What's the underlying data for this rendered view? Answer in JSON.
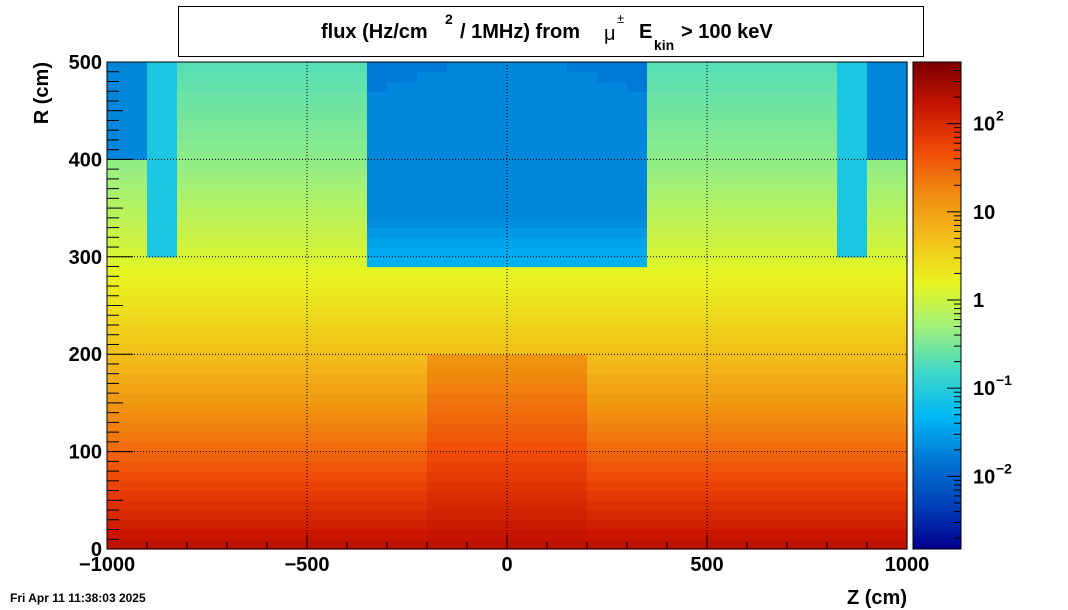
{
  "title": {
    "main": "flux (Hz/cm",
    "sup_2": "2",
    "mid": "/ 1MHz) from",
    "mu": "μ",
    "pm": "±",
    "E": "E",
    "kin": "kin",
    "tail": "> 100 keV"
  },
  "timestamp": "Fri Apr 11 11:38:03 2025",
  "colors": {
    "palette": [
      "#00008f",
      "#0040b8",
      "#0077d4",
      "#00b8f5",
      "#3fd8c8",
      "#9ef07c",
      "#e8f51f",
      "#f2c01a",
      "#f08c10",
      "#f04a08",
      "#c81400",
      "#7a0000"
    ]
  },
  "chart_data": {
    "type": "heatmap",
    "xlabel": "Z (cm)",
    "ylabel": "R (cm)",
    "xlim": [
      -1000,
      1000
    ],
    "ylim": [
      0,
      500
    ],
    "x_ticks": [
      "−1000",
      "−500",
      "0",
      "500",
      "1000"
    ],
    "y_ticks": [
      "0",
      "100",
      "200",
      "300",
      "400",
      "500"
    ],
    "grid": true,
    "log_z": true,
    "z_range": [
      0.0015,
      500
    ],
    "colorbar_ticks": [
      {
        "value": 0.01,
        "base": "10",
        "exp": "−2"
      },
      {
        "value": 0.1,
        "base": "10",
        "exp": "−1"
      },
      {
        "value": 1,
        "base": "1",
        "exp": ""
      },
      {
        "value": 10,
        "base": "10",
        "exp": ""
      },
      {
        "value": 100,
        "base": "10",
        "exp": "2"
      }
    ],
    "regions_description_values": {
      "r_0_flux": 200,
      "r_100_flux": 30,
      "r_200_flux": 5,
      "r_300_flux": 1.2,
      "r_400_flux": 0.4,
      "r_500_flux": 0.2,
      "barrel_gap_flux": 0.02,
      "endcap_corner_flux": 0.02
    }
  }
}
